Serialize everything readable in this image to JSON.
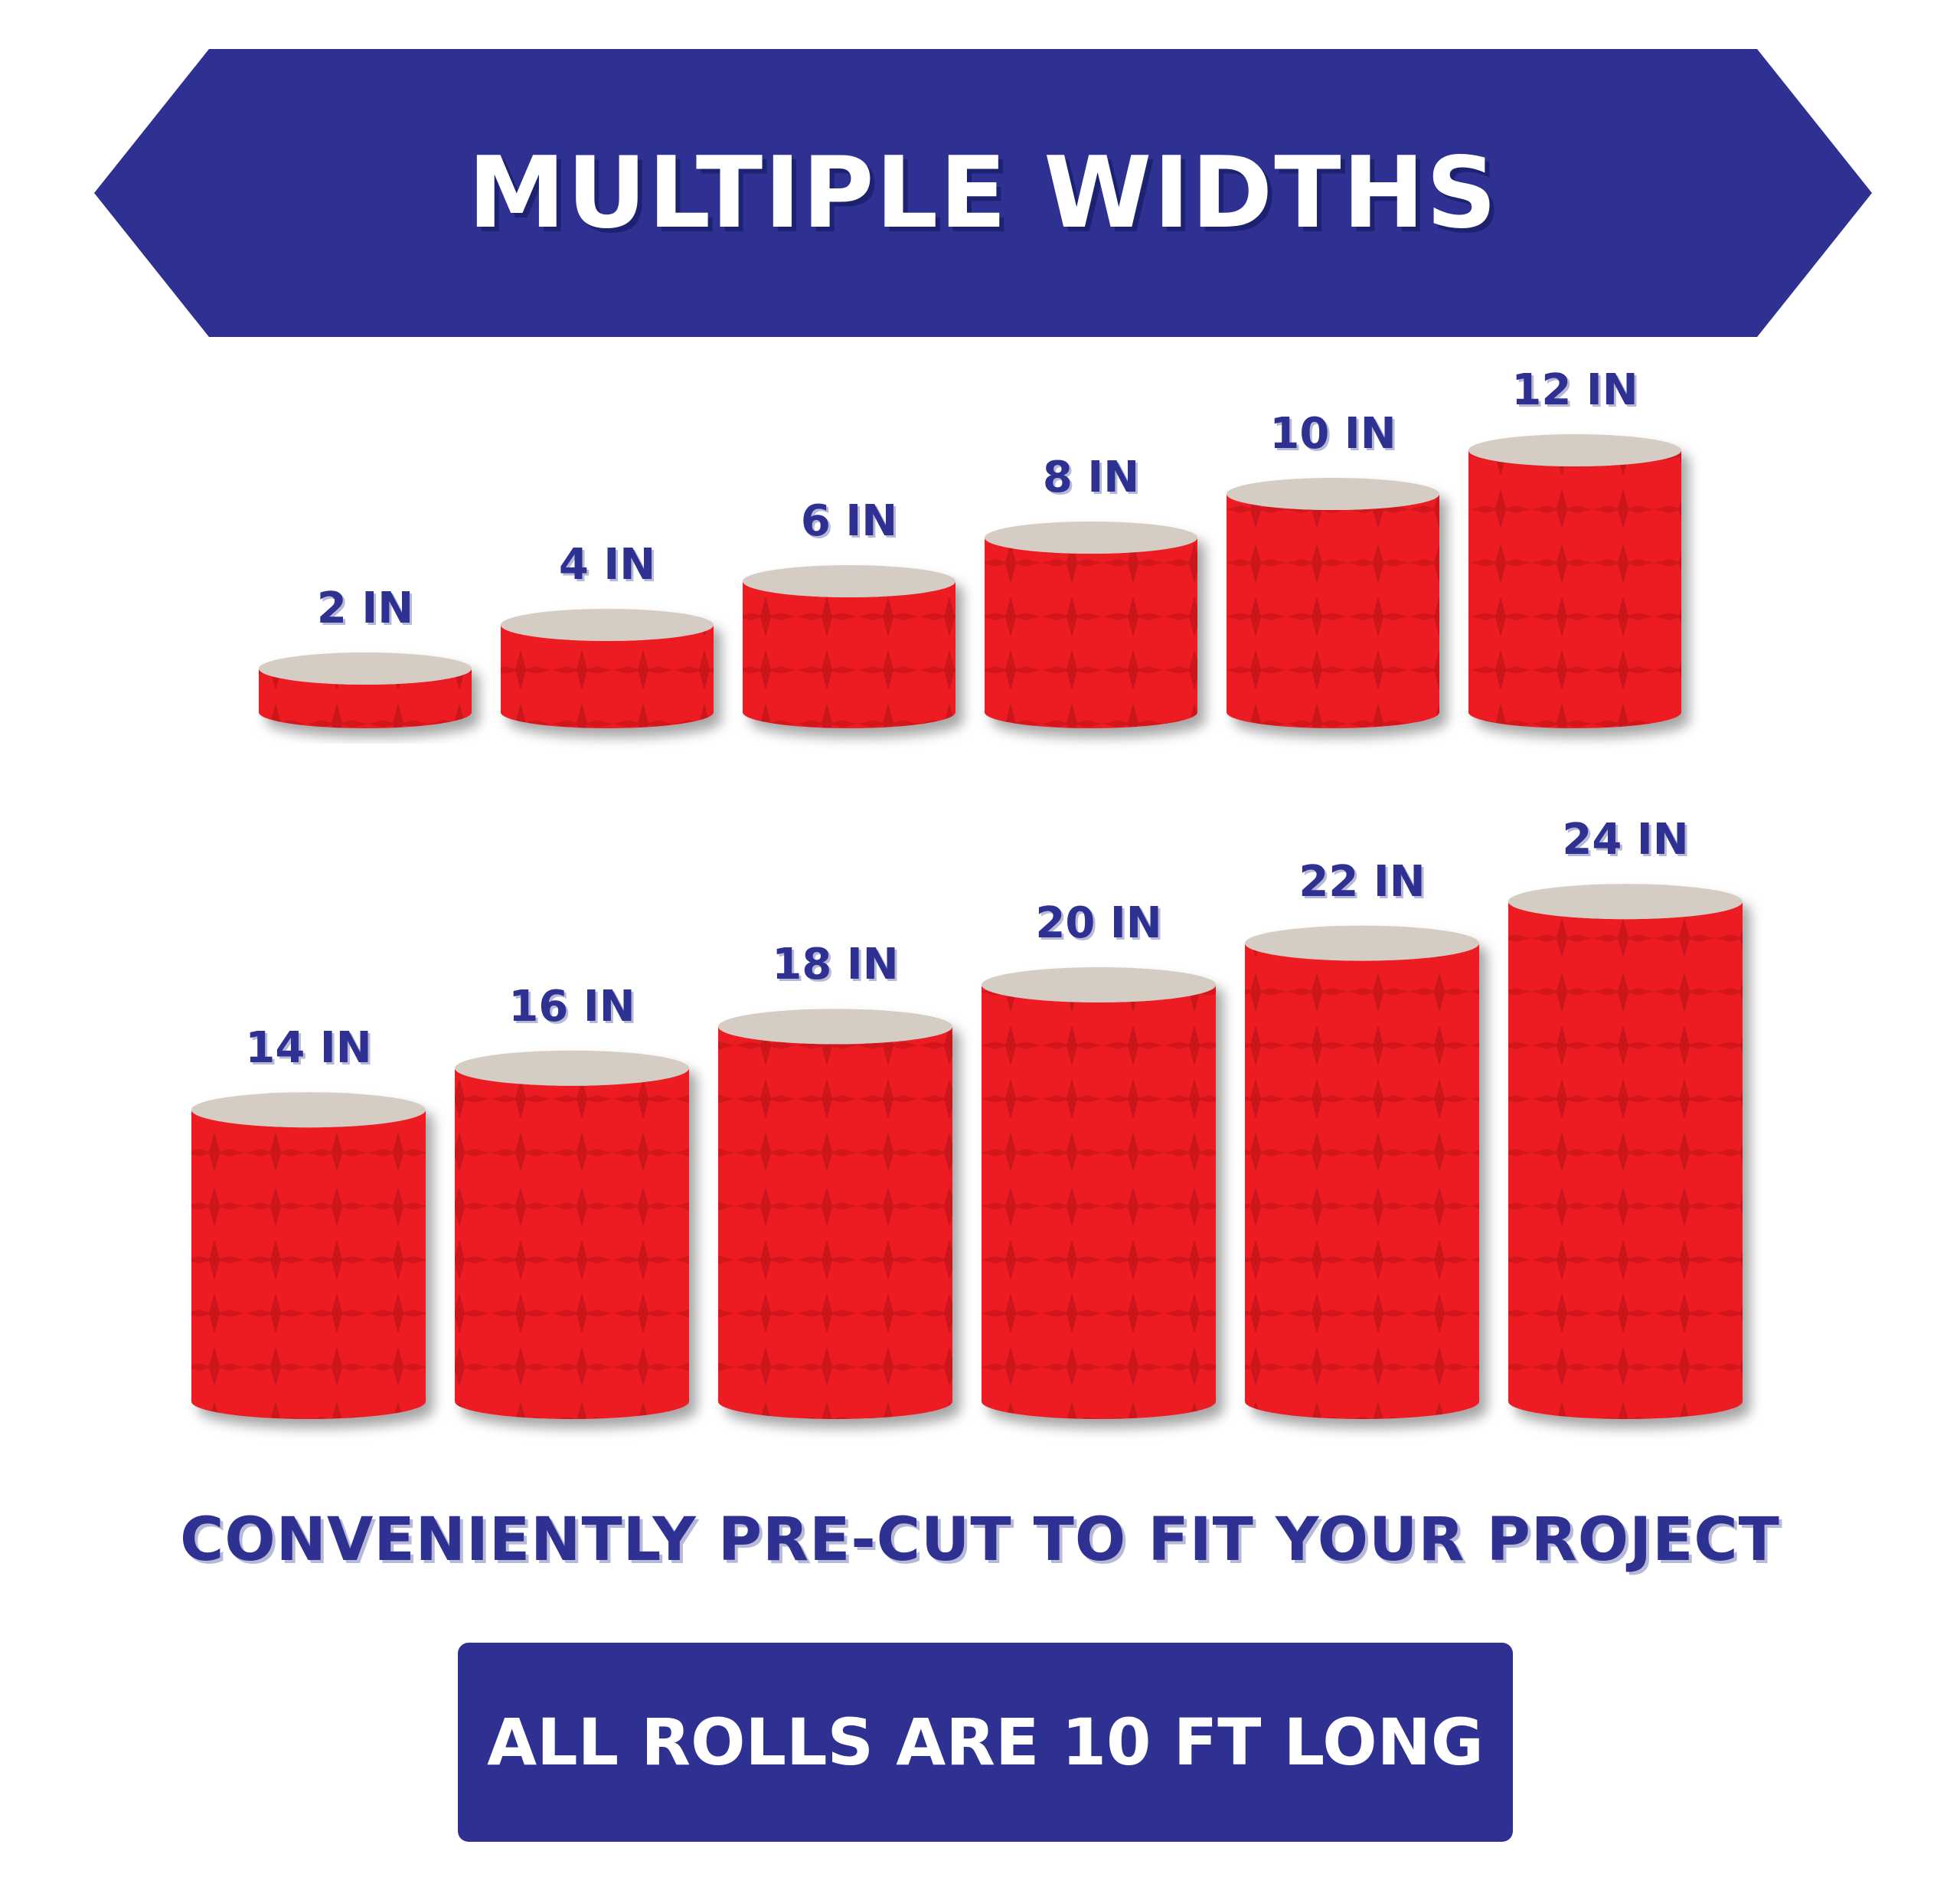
{
  "banner": {
    "title": "MULTIPLE WIDTHS",
    "color": "#2e3192"
  },
  "rolls": [
    {
      "label": "2 IN",
      "width_in": 2
    },
    {
      "label": "4 IN",
      "width_in": 4
    },
    {
      "label": "6 IN",
      "width_in": 6
    },
    {
      "label": "8 IN",
      "width_in": 8
    },
    {
      "label": "10 IN",
      "width_in": 10
    },
    {
      "label": "12 IN",
      "width_in": 12
    },
    {
      "label": "14 IN",
      "width_in": 14
    },
    {
      "label": "16 IN",
      "width_in": 16
    },
    {
      "label": "18 IN",
      "width_in": 18
    },
    {
      "label": "20 IN",
      "width_in": 20
    },
    {
      "label": "22 IN",
      "width_in": 22
    },
    {
      "label": "24 IN",
      "width_in": 24
    }
  ],
  "tagline": "CONVENIENTLY PRE-CUT TO FIT YOUR PROJECT",
  "length_note": "ALL ROLLS ARE 10 FT LONG",
  "colors": {
    "accent": "#2e3192",
    "roll_red": "#ec1c24",
    "roll_pattern": "#c8151b",
    "roll_top": "#d5ccc4"
  }
}
